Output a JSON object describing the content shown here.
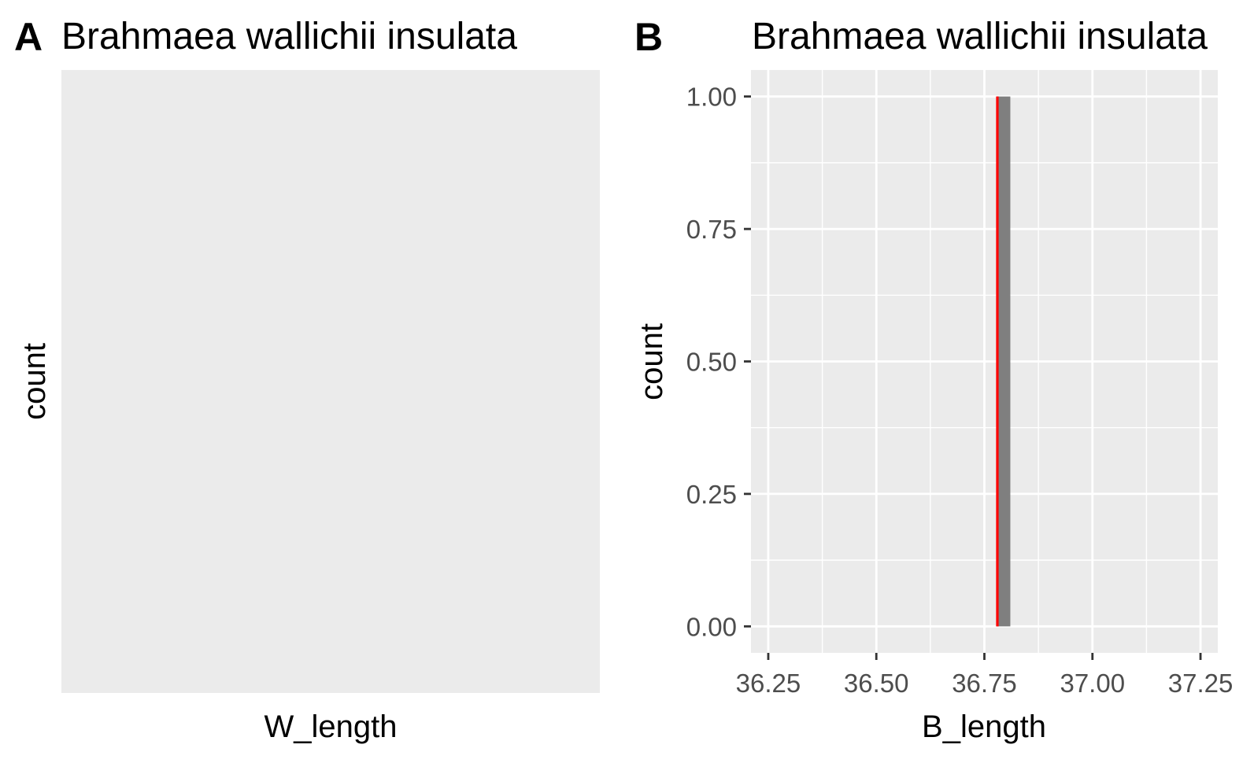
{
  "colors": {
    "panel_background": "#ebebeb",
    "grid": "#ffffff",
    "bar_fill": "#7f7f7f",
    "reference_line": "#ff0000",
    "tick_label": "#4d4d4d",
    "tick_mark": "#333333"
  },
  "chart_data": [
    {
      "panel": "A",
      "title": "Brahmaea wallichii insulata",
      "type": "bar",
      "xlabel": "W_length",
      "ylabel": "count",
      "x": [],
      "values": [],
      "grid": false
    },
    {
      "panel": "B",
      "title": "Brahmaea wallichii insulata",
      "type": "bar",
      "xlabel": "B_length",
      "ylabel": "count",
      "xlim": [
        36.21,
        37.29
      ],
      "ylim": [
        -0.05,
        1.05
      ],
      "xticks": [
        36.25,
        36.5,
        36.75,
        37.0,
        37.25
      ],
      "xtick_labels": [
        "36.25",
        "36.50",
        "36.75",
        "37.00",
        "37.25"
      ],
      "yticks": [
        0,
        0.25,
        0.5,
        0.75,
        1.0
      ],
      "ytick_labels": [
        "0.00",
        "0.25",
        "0.50",
        "0.75",
        "1.00"
      ],
      "bars": [
        {
          "x_start": 36.78,
          "x_end": 36.81,
          "count": 1
        }
      ],
      "vline": 36.78,
      "grid": true
    }
  ]
}
